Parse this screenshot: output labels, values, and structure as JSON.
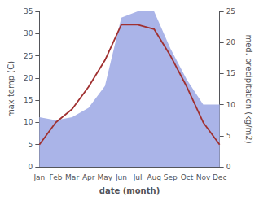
{
  "chart_data": {
    "type": "line",
    "categories": [
      "Jan",
      "Feb",
      "Mar",
      "Apr",
      "May",
      "Jun",
      "Jul",
      "Aug",
      "Sep",
      "Oct",
      "Nov",
      "Dec"
    ],
    "xlabel": "date (month)",
    "ylabel": "max temp (C)",
    "y2label": "med. precipitation (kg/m2)",
    "series": [
      {
        "type": "area",
        "color": "#aab4e8",
        "axis": "y2",
        "values": [
          8,
          7.5,
          8,
          9.5,
          13,
          24,
          25,
          25,
          19,
          14,
          10,
          10
        ]
      },
      {
        "type": "line",
        "color": "#a03030",
        "values": [
          5,
          10,
          13,
          18,
          24,
          32,
          32,
          31,
          25,
          18,
          10,
          5
        ]
      }
    ],
    "ylim": [
      0,
      35
    ],
    "yticks": [
      0,
      5,
      10,
      15,
      20,
      25,
      30,
      35
    ],
    "y2lim": [
      0,
      25
    ],
    "y2ticks": [
      0,
      5,
      10,
      15,
      20,
      25
    ],
    "grid": false
  }
}
